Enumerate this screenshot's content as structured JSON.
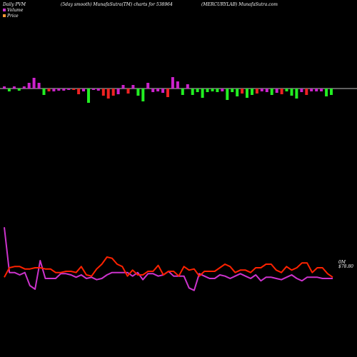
{
  "header": {
    "left": "Daily PVM",
    "center": "(5day smooth) MunafaSutra(TM) charts for 538964",
    "right": "(MERCURYLAB) MunafaSutra.com"
  },
  "legend": [
    {
      "label": "Volume",
      "color": "#cc33cc"
    },
    {
      "label": "Price",
      "color": "#ff9933"
    }
  ],
  "price_tag": "0M",
  "price_value": "$78.80",
  "colors": {
    "background": "#000000",
    "baseline": "#ffffff",
    "up_bar": "#cc22cc",
    "down_bar": "#ee2222",
    "green_bar": "#22ee22",
    "volume_line": "#cc33cc",
    "price_line": "#ff2200"
  },
  "chart_data": {
    "type": "bar",
    "bars": [
      {
        "v": 3,
        "c": "magenta"
      },
      {
        "v": -4,
        "c": "green"
      },
      {
        "v": 3,
        "c": "magenta"
      },
      {
        "v": -3,
        "c": "green"
      },
      {
        "v": 3,
        "c": "magenta"
      },
      {
        "v": 8,
        "c": "magenta"
      },
      {
        "v": 15,
        "c": "magenta"
      },
      {
        "v": 8,
        "c": "magenta"
      },
      {
        "v": -9,
        "c": "green"
      },
      {
        "v": -4,
        "c": "red"
      },
      {
        "v": -4,
        "c": "magenta"
      },
      {
        "v": -3,
        "c": "magenta"
      },
      {
        "v": -3,
        "c": "magenta"
      },
      {
        "v": -2,
        "c": "magenta"
      },
      {
        "v": -2,
        "c": "red"
      },
      {
        "v": -8,
        "c": "red"
      },
      {
        "v": -4,
        "c": "magenta"
      },
      {
        "v": -20,
        "c": "green"
      },
      {
        "v": -2,
        "c": "magenta"
      },
      {
        "v": -3,
        "c": "magenta"
      },
      {
        "v": -10,
        "c": "red"
      },
      {
        "v": -14,
        "c": "red"
      },
      {
        "v": -10,
        "c": "red"
      },
      {
        "v": -8,
        "c": "magenta"
      },
      {
        "v": 5,
        "c": "magenta"
      },
      {
        "v": -7,
        "c": "red"
      },
      {
        "v": 5,
        "c": "magenta"
      },
      {
        "v": -10,
        "c": "green"
      },
      {
        "v": -18,
        "c": "green"
      },
      {
        "v": 8,
        "c": "magenta"
      },
      {
        "v": -5,
        "c": "magenta"
      },
      {
        "v": -4,
        "c": "magenta"
      },
      {
        "v": -6,
        "c": "magenta"
      },
      {
        "v": -12,
        "c": "red"
      },
      {
        "v": 16,
        "c": "magenta"
      },
      {
        "v": 10,
        "c": "magenta"
      },
      {
        "v": -9,
        "c": "green"
      },
      {
        "v": 6,
        "c": "magenta"
      },
      {
        "v": -9,
        "c": "green"
      },
      {
        "v": -5,
        "c": "green"
      },
      {
        "v": -13,
        "c": "green"
      },
      {
        "v": -5,
        "c": "green"
      },
      {
        "v": -4,
        "c": "green"
      },
      {
        "v": -5,
        "c": "green"
      },
      {
        "v": -4,
        "c": "magenta"
      },
      {
        "v": -16,
        "c": "green"
      },
      {
        "v": -5,
        "c": "green"
      },
      {
        "v": -11,
        "c": "green"
      },
      {
        "v": -7,
        "c": "red"
      },
      {
        "v": -13,
        "c": "green"
      },
      {
        "v": -9,
        "c": "green"
      },
      {
        "v": -7,
        "c": "red"
      },
      {
        "v": -4,
        "c": "magenta"
      },
      {
        "v": -5,
        "c": "magenta"
      },
      {
        "v": -9,
        "c": "green"
      },
      {
        "v": -6,
        "c": "magenta"
      },
      {
        "v": -8,
        "c": "red"
      },
      {
        "v": -4,
        "c": "green"
      },
      {
        "v": -10,
        "c": "green"
      },
      {
        "v": -14,
        "c": "green"
      },
      {
        "v": -5,
        "c": "magenta"
      },
      {
        "v": -9,
        "c": "red"
      },
      {
        "v": -4,
        "c": "magenta"
      },
      {
        "v": -4,
        "c": "magenta"
      },
      {
        "v": -4,
        "c": "magenta"
      },
      {
        "v": -11,
        "c": "green"
      },
      {
        "v": -9,
        "c": "green"
      }
    ],
    "volume_line": [
      55,
      17,
      17,
      15,
      17,
      6,
      3,
      27,
      12,
      12,
      12,
      16,
      16,
      15,
      13,
      15,
      12,
      13,
      11,
      12,
      15,
      17,
      17,
      17,
      17,
      14,
      17,
      11,
      16,
      16,
      14,
      15,
      18,
      14,
      14,
      14,
      4,
      2,
      16,
      14,
      12,
      12,
      15,
      14,
      12,
      14,
      16,
      14,
      12,
      15,
      10,
      13,
      13,
      12,
      11,
      13,
      15,
      12,
      10,
      13,
      13,
      13,
      12,
      12,
      12
    ],
    "price_line": [
      13,
      21,
      22,
      22,
      20,
      20,
      21,
      21,
      20,
      20,
      17,
      17,
      18,
      18,
      17,
      22,
      15,
      14,
      20,
      24,
      30,
      29,
      24,
      22,
      14,
      19,
      15,
      15,
      18,
      18,
      23,
      15,
      18,
      18,
      14,
      22,
      19,
      20,
      14,
      18,
      18,
      18,
      21,
      24,
      22,
      17,
      19,
      19,
      17,
      21,
      21,
      24,
      24,
      19,
      17,
      22,
      19,
      21,
      25,
      25,
      17,
      21,
      21,
      16,
      13
    ],
    "value_range": [
      0,
      60
    ]
  }
}
